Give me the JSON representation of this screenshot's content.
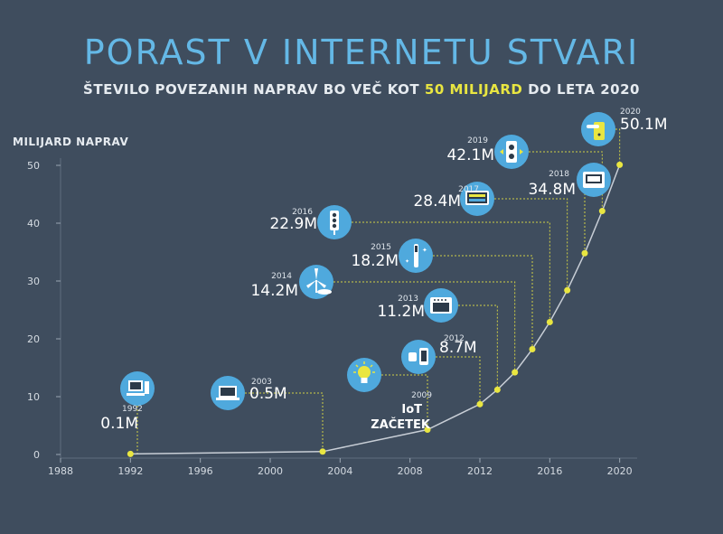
{
  "header": {
    "title": "PORAST V INTERNETU STVARI",
    "subtitle_pre": "ŠTEVILO POVEZANIH NAPRAV BO VEČ KOT",
    "subtitle_highlight": "50 MILIJARD",
    "subtitle_post": "DO LETA 2020"
  },
  "colors": {
    "background": "#3f4d5e",
    "title": "#64b8e6",
    "highlight": "#e9e641",
    "point": "#e9e641",
    "icon_circle": "#4fa9dd",
    "line": "#c8ced6"
  },
  "chart_data": {
    "type": "line",
    "title": "PORAST V INTERNETU STVARI",
    "ylabel": "MILIJARD NAPRAV",
    "xlabel": "",
    "xlim": [
      1988,
      2021
    ],
    "ylim": [
      0,
      50
    ],
    "x_ticks": [
      1988,
      1992,
      1996,
      2000,
      2004,
      2008,
      2012,
      2016,
      2020
    ],
    "y_ticks": [
      0,
      10,
      20,
      30,
      40,
      50
    ],
    "grid": false,
    "series": [
      {
        "x": [
          1992,
          2003,
          2009,
          2012,
          2013,
          2014,
          2015,
          2016,
          2017,
          2018,
          2019,
          2020
        ],
        "values": [
          0.1,
          0.5,
          4.3,
          8.7,
          11.2,
          14.2,
          18.2,
          22.9,
          28.4,
          34.8,
          42.1,
          50.1
        ]
      }
    ],
    "annotations": [
      {
        "year": "1992",
        "value": "0.1M",
        "icon": "computer-icon"
      },
      {
        "year": "2003",
        "value": "0.5M",
        "icon": "laptop-icon"
      },
      {
        "year": "2009",
        "value": "IoT",
        "value2": "ZAČETEK",
        "icon": "lightbulb-icon"
      },
      {
        "year": "2012",
        "value": "8.7M",
        "icon": "smartwatch-phone-icon"
      },
      {
        "year": "2013",
        "value": "11.2M",
        "icon": "oven-icon"
      },
      {
        "year": "2014",
        "value": "14.2M",
        "icon": "wind-turbine-icon"
      },
      {
        "year": "2015",
        "value": "18.2M",
        "icon": "toothbrush-icon"
      },
      {
        "year": "2016",
        "value": "22.9M",
        "icon": "traffic-light-icon"
      },
      {
        "year": "2017",
        "value": "28.4M",
        "icon": "display-panel-icon"
      },
      {
        "year": "2018",
        "value": "34.8M",
        "icon": "thermostat-icon"
      },
      {
        "year": "2019",
        "value": "42.1M",
        "icon": "power-outlet-icon"
      },
      {
        "year": "2020",
        "value": "50.1M",
        "icon": "door-lock-icon"
      }
    ]
  }
}
